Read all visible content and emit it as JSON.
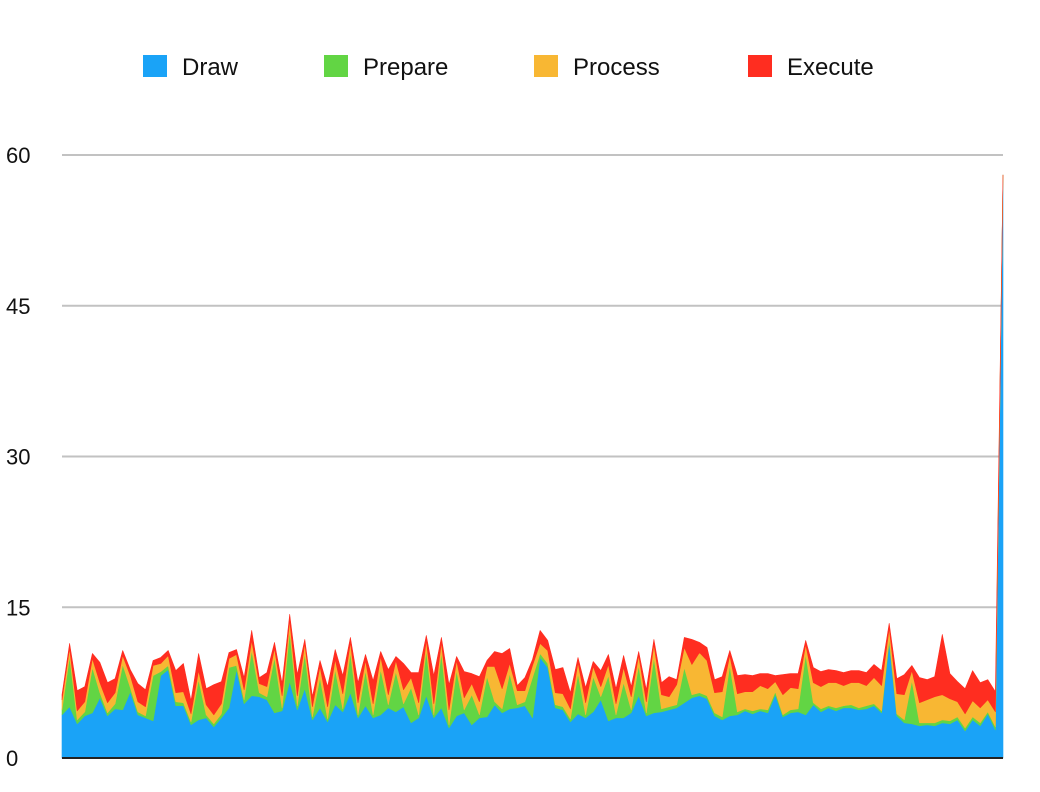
{
  "chart_data": {
    "type": "area",
    "stacked": true,
    "legend_position": "top",
    "grid": true,
    "ylim": [
      0,
      60
    ],
    "yticks": [
      0,
      15,
      30,
      45,
      60
    ],
    "ytick_labels": [
      "0",
      "15",
      "30",
      "45",
      "60"
    ],
    "series": [
      {
        "name": "Draw",
        "color": "#1aa3f7",
        "values": [
          4.3,
          5.1,
          3.4,
          4.2,
          4.5,
          6.0,
          4.2,
          4.9,
          4.8,
          6.6,
          4.3,
          4.0,
          3.7,
          8.2,
          8.8,
          5.2,
          5.2,
          3.3,
          3.8,
          4.0,
          3.1,
          4.0,
          5.0,
          8.8,
          5.4,
          6.2,
          6.1,
          5.8,
          4.5,
          4.7,
          7.6,
          4.8,
          6.9,
          3.8,
          5.0,
          3.6,
          5.3,
          4.6,
          6.5,
          4.0,
          5.2,
          4.0,
          4.3,
          5.0,
          4.6,
          5.1,
          3.5,
          4.0,
          6.2,
          4.0,
          5.0,
          3.0,
          4.2,
          4.5,
          3.3,
          4.0,
          4.1,
          5.3,
          4.5,
          4.9,
          5.0,
          5.2,
          4.0,
          10.0,
          9.0,
          5.0,
          4.8,
          3.6,
          4.4,
          4.0,
          4.6,
          5.8,
          3.7,
          4.0,
          4.0,
          4.5,
          6.2,
          4.2,
          4.5,
          4.6,
          4.8,
          5.0,
          5.5,
          6.0,
          6.2,
          5.9,
          4.2,
          3.8,
          4.2,
          4.3,
          4.7,
          4.4,
          4.7,
          4.5,
          6.3,
          4.1,
          4.5,
          4.6,
          4.3,
          5.3,
          4.6,
          5.0,
          4.7,
          5.0,
          5.0,
          4.8,
          4.9,
          5.2,
          4.5,
          11.5,
          4.2,
          3.5,
          3.4,
          3.2,
          3.3,
          3.2,
          3.5,
          3.4,
          3.8,
          2.7,
          3.8,
          3.2,
          4.4,
          2.8,
          58.0
        ]
      },
      {
        "name": "Prepare",
        "color": "#62d544",
        "values": [
          0.5,
          5.0,
          0.4,
          0.4,
          4.5,
          0.5,
          0.3,
          0.5,
          4.5,
          0.4,
          0.3,
          0.2,
          4.5,
          0.4,
          0.4,
          0.4,
          0.3,
          0.3,
          4.0,
          0.3,
          0.3,
          0.4,
          4.0,
          0.4,
          0.4,
          4.5,
          0.4,
          0.3,
          5.5,
          0.3,
          5.0,
          0.4,
          3.5,
          0.3,
          3.0,
          0.3,
          3.5,
          0.3,
          4.0,
          0.3,
          3.5,
          0.3,
          4.5,
          0.3,
          4.0,
          0.3,
          3.5,
          0.3,
          4.5,
          0.3,
          5.5,
          0.3,
          4.5,
          0.3,
          3.0,
          0.3,
          4.0,
          0.3,
          0.4,
          3.5,
          0.3,
          0.4,
          4.0,
          0.4,
          0.4,
          0.3,
          0.3,
          0.3,
          4.0,
          0.3,
          3.5,
          0.3,
          4.5,
          0.3,
          3.5,
          0.3,
          3.0,
          0.3,
          5.5,
          0.3,
          0.3,
          0.3,
          3.5,
          0.3,
          0.3,
          0.3,
          0.3,
          0.3,
          5.0,
          0.3,
          0.2,
          0.3,
          0.2,
          0.3,
          0.3,
          0.2,
          0.3,
          0.3,
          6.0,
          0.2,
          0.3,
          0.2,
          0.3,
          0.2,
          0.3,
          0.2,
          0.3,
          0.2,
          0.2,
          0.4,
          0.2,
          0.3,
          4.3,
          0.3,
          0.2,
          0.3,
          0.3,
          0.3,
          0.3,
          0.3,
          0.3,
          0.3,
          0.2,
          0.3,
          0.0
        ]
      },
      {
        "name": "Process",
        "color": "#f8b733",
        "values": [
          1.0,
          0.8,
          0.9,
          1.0,
          0.9,
          1.0,
          1.0,
          1.1,
          0.9,
          1.2,
          1.0,
          0.9,
          1.0,
          0.8,
          1.0,
          0.9,
          1.1,
          0.8,
          0.9,
          1.0,
          0.9,
          1.0,
          0.9,
          1.1,
          1.0,
          1.0,
          0.9,
          1.0,
          0.9,
          1.2,
          1.1,
          1.0,
          1.0,
          1.0,
          1.1,
          1.2,
          1.0,
          1.5,
          1.0,
          1.2,
          1.0,
          1.1,
          1.3,
          1.0,
          1.1,
          1.4,
          1.0,
          1.2,
          1.0,
          1.1,
          1.0,
          1.5,
          1.0,
          1.2,
          1.1,
          1.3,
          1.0,
          3.5,
          2.0,
          1.0,
          1.4,
          1.1,
          1.2,
          1.0,
          1.3,
          1.2,
          1.3,
          1.0,
          1.1,
          1.2,
          1.0,
          1.0,
          1.1,
          1.1,
          1.5,
          1.3,
          1.0,
          1.1,
          1.3,
          1.4,
          1.0,
          2.0,
          2.0,
          3.0,
          4.0,
          3.5,
          2.0,
          2.5,
          1.0,
          1.8,
          1.7,
          1.9,
          2.3,
          2.1,
          1.0,
          2.0,
          2.2,
          2.0,
          1.0,
          2.0,
          2.2,
          2.3,
          2.5,
          2.0,
          2.2,
          2.5,
          2.0,
          2.6,
          2.5,
          1.0,
          2.0,
          2.5,
          1.0,
          2.0,
          2.3,
          2.6,
          2.5,
          2.2,
          1.5,
          1.4,
          1.6,
          1.5,
          1.2,
          1.5,
          0.0
        ]
      },
      {
        "name": "Execute",
        "color": "#ff2d20",
        "values": [
          0.5,
          0.5,
          2.0,
          1.5,
          0.5,
          2.0,
          2.0,
          1.4,
          0.5,
          0.6,
          1.8,
          1.7,
          0.5,
          0.6,
          0.5,
          2.2,
          2.8,
          1.3,
          1.7,
          1.6,
          3.0,
          2.2,
          0.6,
          0.5,
          1.2,
          1.0,
          0.6,
          1.4,
          0.6,
          1.2,
          0.6,
          2.1,
          0.4,
          1.0,
          0.6,
          2.0,
          1.0,
          1.8,
          0.5,
          2.0,
          0.6,
          2.3,
          0.5,
          2.5,
          0.4,
          2.6,
          0.5,
          3.0,
          0.5,
          2.8,
          0.5,
          2.5,
          0.4,
          2.6,
          1.0,
          2.5,
          0.6,
          1.5,
          3.5,
          1.5,
          0.5,
          1.3,
          0.6,
          1.3,
          1.0,
          2.3,
          2.6,
          1.6,
          0.5,
          1.5,
          0.5,
          1.6,
          1.0,
          1.5,
          1.2,
          1.0,
          0.4,
          1.2,
          0.5,
          1.2,
          2.0,
          0.5,
          1.0,
          2.5,
          1.0,
          1.3,
          1.3,
          1.5,
          0.5,
          1.8,
          1.7,
          1.6,
          1.2,
          1.5,
          0.6,
          2.0,
          1.4,
          1.5,
          0.4,
          1.5,
          1.5,
          1.3,
          1.2,
          1.3,
          1.2,
          1.2,
          1.3,
          1.3,
          1.5,
          0.5,
          1.5,
          2.0,
          0.5,
          2.5,
          2.0,
          2.0,
          6.0,
          2.5,
          2.0,
          2.5,
          3.0,
          2.5,
          2.0,
          2.0,
          0.0
        ]
      }
    ]
  }
}
